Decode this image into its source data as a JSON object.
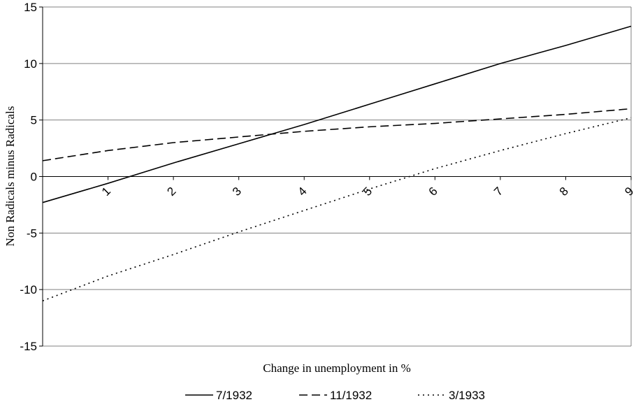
{
  "chart_data": {
    "type": "line",
    "xlabel": "Change in unemployment in %",
    "ylabel": "Non Radicals minus Radicals",
    "x": [
      0,
      1,
      2,
      3,
      4,
      5,
      6,
      7,
      8,
      9
    ],
    "xticks": [
      1,
      2,
      3,
      4,
      5,
      6,
      7,
      8,
      9
    ],
    "xlim": [
      0,
      9
    ],
    "ylim": [
      -15,
      15
    ],
    "yticks": [
      -15,
      -10,
      -5,
      0,
      5,
      10,
      15
    ],
    "grid": true,
    "legend": "bottom",
    "series": [
      {
        "name": "7/1932",
        "style": "solid",
        "values": [
          -2.3,
          -0.6,
          1.2,
          2.9,
          4.6,
          6.4,
          8.2,
          10.0,
          11.6,
          13.3
        ]
      },
      {
        "name": "11/1932",
        "style": "dashed",
        "values": [
          1.4,
          2.3,
          3.0,
          3.5,
          4.0,
          4.4,
          4.7,
          5.1,
          5.5,
          6.0
        ]
      },
      {
        "name": "3/1933",
        "style": "dotted",
        "values": [
          -11.0,
          -8.8,
          -6.9,
          -4.9,
          -3.0,
          -1.1,
          0.7,
          2.3,
          3.8,
          5.2
        ]
      }
    ]
  }
}
